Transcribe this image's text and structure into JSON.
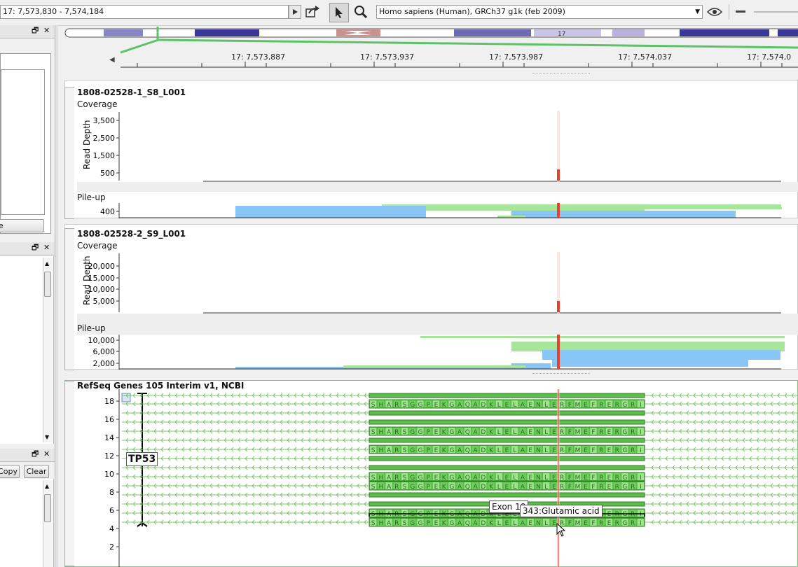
{
  "toolbar": {
    "locus": "17: 7,573,830 - 7,574,184",
    "genome": "Homo sapiens (Human), GRCh37 g1k (feb 2009)"
  },
  "chromosome": {
    "label": "17"
  },
  "ruler": {
    "ticks": [
      "17: 7,573,887",
      "17: 7,573,937",
      "17: 7,573,987",
      "17: 7,574,037",
      "17: 7,574,0"
    ]
  },
  "left_panels": {
    "panel1_button_fragment": "e",
    "copy_label": "Copy",
    "clear_label": "Clear"
  },
  "tracks": [
    {
      "name": "1808-02528-1_S8_L001",
      "coverage_label": "Coverage",
      "ylabel": "Read Depth",
      "coverage_ticks": [
        "3,500",
        "2,500",
        "1,500",
        "500"
      ],
      "pileup_label": "Pile-up",
      "pileup_ticks": [
        "400"
      ]
    },
    {
      "name": "1808-02528-2_S9_L001",
      "coverage_label": "Coverage",
      "ylabel": "Read Depth",
      "coverage_ticks": [
        "20,000",
        "15,000",
        "10,000",
        "5,000"
      ],
      "pileup_label": "Pile-up",
      "pileup_ticks": [
        "10,000",
        "6,000",
        "2,000"
      ]
    }
  ],
  "genes": {
    "name": "RefSeq Genes 105 Interim v1, NCBI",
    "ticks": [
      "18",
      "16",
      "14",
      "12",
      "10",
      "8",
      "6",
      "4",
      "2"
    ],
    "gene_label": "TP53",
    "aa_sequence": "SHARSGGPEKGAQADKLELAENLERFMEFRERGRI",
    "exon_tooltip": "Exon 10",
    "aa_tooltip": "343:Glutamic acid"
  },
  "colors": {
    "coverage_gray": "#6e6e6e",
    "pileup_blue": "#87c6f5",
    "pileup_green": "#a7e69a",
    "exon_green": "#5cbc4c",
    "highlight_red": "#e8412e",
    "transcript_green": "#7cc56b"
  }
}
